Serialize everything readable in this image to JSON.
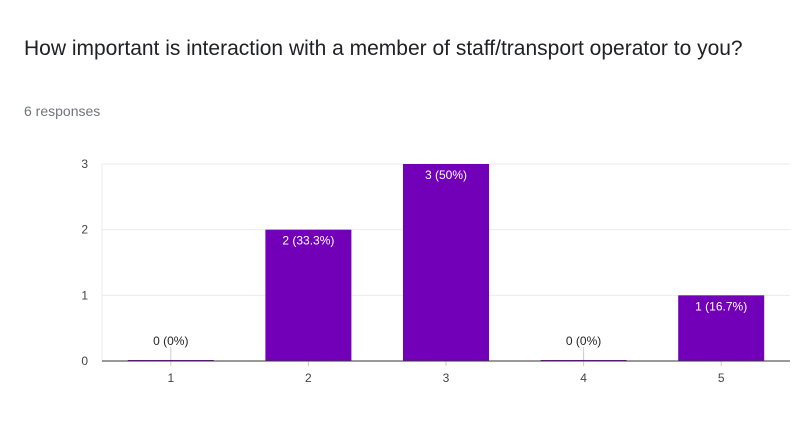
{
  "question": {
    "title": "How important is interaction with a member of staff/transport operator to you?",
    "responses": "6 responses"
  },
  "colors": {
    "bar": "#7300b9",
    "grid": "#ebebeb",
    "axis": "#333333",
    "tick_text": "#444444",
    "label_inside": "#ffffff",
    "label_outside": "#222222"
  },
  "chart_data": {
    "type": "bar",
    "categories": [
      "1",
      "2",
      "3",
      "4",
      "5"
    ],
    "values": [
      0,
      2,
      3,
      0,
      1
    ],
    "data_labels": [
      "0 (0%)",
      "2 (33.3%)",
      "3 (50%)",
      "0 (0%)",
      "1 (16.7%)"
    ],
    "y_ticks": [
      "0",
      "1",
      "2",
      "3"
    ],
    "ylim": [
      0,
      3
    ],
    "grid": true,
    "legend": "none",
    "xlabel": "",
    "ylabel": ""
  }
}
